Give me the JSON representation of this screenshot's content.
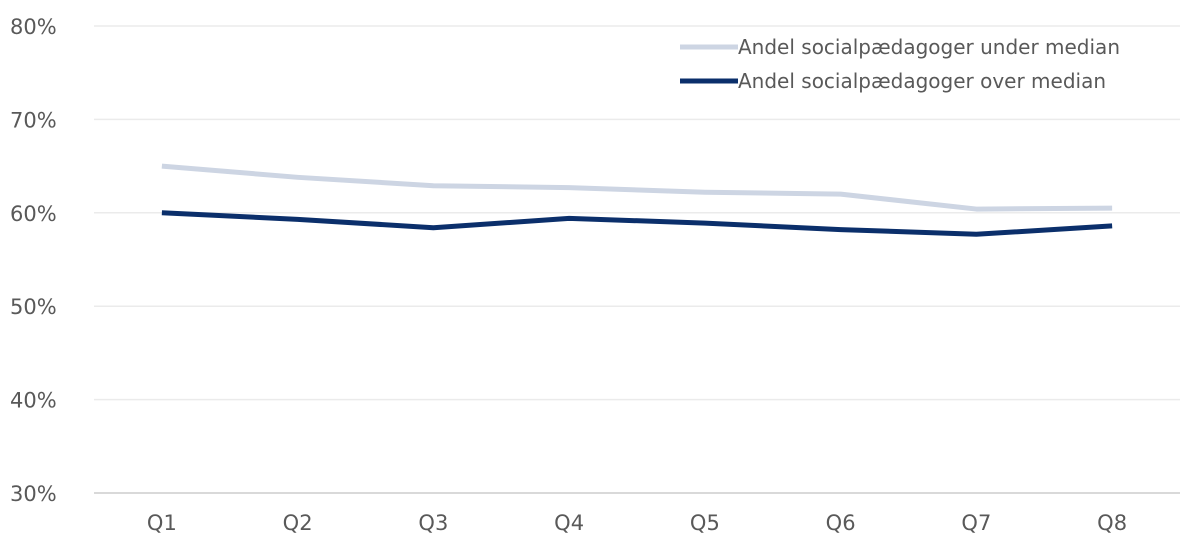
{
  "chart_data": {
    "type": "line",
    "title": "",
    "xlabel": "",
    "ylabel": "",
    "categories": [
      "Q1",
      "Q2",
      "Q3",
      "Q4",
      "Q5",
      "Q6",
      "Q7",
      "Q8"
    ],
    "ylim": [
      30,
      80
    ],
    "y_ticks": [
      30,
      40,
      50,
      60,
      70,
      80
    ],
    "y_tick_labels": [
      "30%",
      "40%",
      "50%",
      "60%",
      "70%",
      "80%"
    ],
    "grid": true,
    "legend_position": "top-right",
    "series": [
      {
        "name": "Andel socialpædagoger under median",
        "color": "#cdd5e3",
        "values": [
          65.0,
          63.8,
          62.9,
          62.7,
          62.2,
          62.0,
          60.4,
          60.5
        ]
      },
      {
        "name": "Andel socialpædagoger over median",
        "color": "#0b2f6b",
        "values": [
          60.0,
          59.3,
          58.4,
          59.4,
          58.9,
          58.2,
          57.7,
          58.6
        ]
      }
    ],
    "colors": {
      "grid": "#ebebeb",
      "axis": "#d9d9d9",
      "text": "#595959"
    }
  }
}
